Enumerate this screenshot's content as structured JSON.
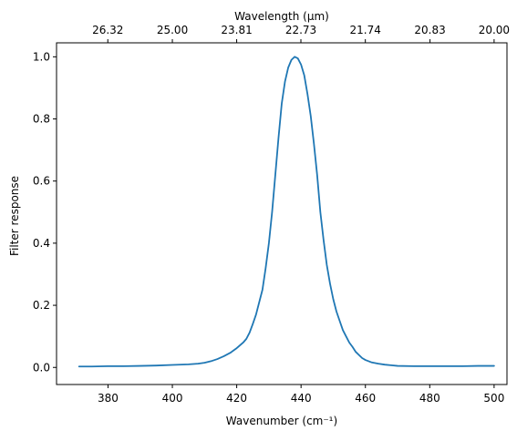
{
  "chart_data": {
    "type": "line",
    "title": "",
    "xlabel": "Wavenumber (cm⁻¹)",
    "ylabel": "Filter response",
    "secondary_xlabel": "Wavelength (μm)",
    "xlim": [
      364,
      504
    ],
    "ylim": [
      -0.055,
      1.045
    ],
    "x_ticks": [
      380,
      400,
      420,
      440,
      460,
      480,
      500
    ],
    "y_ticks": [
      0.0,
      0.2,
      0.4,
      0.6,
      0.8,
      1.0
    ],
    "y_tick_labels": [
      "0.0",
      "0.2",
      "0.4",
      "0.6",
      "0.8",
      "1.0"
    ],
    "secondary_x_ticks": [
      {
        "label": "26.32",
        "x": 379.94
      },
      {
        "label": "25.00",
        "x": 400.0
      },
      {
        "label": "23.81",
        "x": 419.99
      },
      {
        "label": "22.73",
        "x": 439.95
      },
      {
        "label": "21.74",
        "x": 459.98
      },
      {
        "label": "20.83",
        "x": 480.08
      },
      {
        "label": "20.00",
        "x": 500.0
      }
    ],
    "grid": false,
    "legend": "none",
    "series": [
      {
        "color": "#1f77b4",
        "x": [
          371,
          375,
          380,
          385,
          390,
          395,
          400,
          405,
          408,
          410,
          412,
          414,
          416,
          418,
          420,
          422,
          423,
          424,
          425,
          426,
          427,
          428,
          429,
          430,
          431,
          432,
          433,
          434,
          435,
          436,
          437,
          438,
          439,
          440,
          441,
          442,
          443,
          444,
          445,
          446,
          447,
          448,
          449,
          450,
          451,
          452,
          453,
          454,
          455,
          456,
          457,
          458,
          459,
          460,
          462,
          464,
          466,
          468,
          470,
          475,
          480,
          485,
          490,
          495,
          500
        ],
        "y": [
          0.003,
          0.003,
          0.004,
          0.004,
          0.005,
          0.006,
          0.008,
          0.01,
          0.012,
          0.015,
          0.02,
          0.027,
          0.036,
          0.047,
          0.062,
          0.08,
          0.092,
          0.112,
          0.14,
          0.17,
          0.21,
          0.25,
          0.32,
          0.4,
          0.5,
          0.62,
          0.74,
          0.85,
          0.92,
          0.965,
          0.99,
          1.0,
          0.995,
          0.975,
          0.94,
          0.88,
          0.81,
          0.72,
          0.62,
          0.5,
          0.41,
          0.33,
          0.27,
          0.22,
          0.18,
          0.15,
          0.12,
          0.1,
          0.08,
          0.066,
          0.05,
          0.04,
          0.03,
          0.024,
          0.016,
          0.012,
          0.009,
          0.007,
          0.005,
          0.004,
          0.004,
          0.004,
          0.004,
          0.005,
          0.005
        ]
      }
    ]
  }
}
